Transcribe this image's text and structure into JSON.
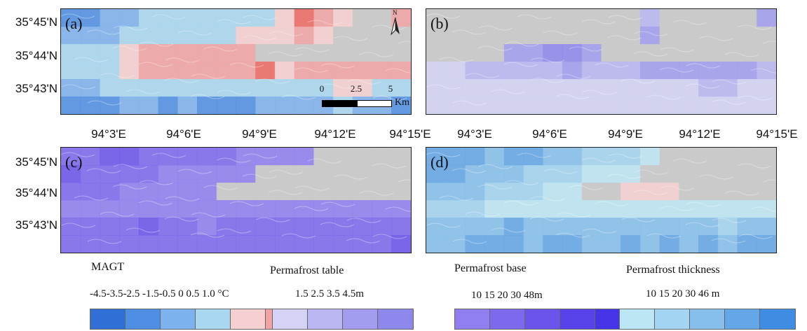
{
  "y_axis_labels": [
    "35°45'N",
    "35°44'N",
    "35°43'N"
  ],
  "x_axis_labels_top": [
    "94°3'E",
    "94°6'E",
    "94°9'E",
    "94°12'E",
    "94°15'E"
  ],
  "x_axis_labels_right": [
    "94°3'E",
    "94°6'E",
    "94°9'E",
    "94°12'E",
    "94°15'E"
  ],
  "panels": [
    {
      "label": "(a)",
      "variable": "MAGT"
    },
    {
      "label": "(b)",
      "variable": "Permafrost table"
    },
    {
      "label": "(c)",
      "variable": "Permafrost base"
    },
    {
      "label": "(d)",
      "variable": "Permafrost thickness"
    }
  ],
  "north_arrow": {
    "letter": "N",
    "icon": "north-arrow-icon"
  },
  "scale_bar": {
    "labels": [
      "0",
      "2.5",
      "5"
    ],
    "unit": "Km"
  },
  "legends": [
    {
      "title": "MAGT",
      "values": "-4.5-3.5-2.5 -1.5-0.5  0   0.5 1.0 °C",
      "colors": [
        "#2f6fd6",
        "#4f8fe3",
        "#7eb2ee",
        "#a9d7f0",
        "#f6d0d0",
        "#f2a3a3",
        "#ee6a64"
      ]
    },
    {
      "title": "Permafrost table",
      "values": "1.5     2.5     3.5   4.5m",
      "colors": [
        "#d4d3f6",
        "#bab7f2",
        "#a29def",
        "#8e88ec"
      ]
    },
    {
      "title": "Permafrost base",
      "values": "10    15    20    30   48m",
      "colors": [
        "#8f7ff0",
        "#7d69ee",
        "#6a55ec",
        "#5843ea",
        "#4634e8"
      ]
    },
    {
      "title": "Permafrost thickness",
      "values": "10    15    20    30   46 m",
      "colors": [
        "#bde6f5",
        "#a3d4f1",
        "#86bfec",
        "#64a7e8",
        "#3f8de3"
      ]
    }
  ]
}
